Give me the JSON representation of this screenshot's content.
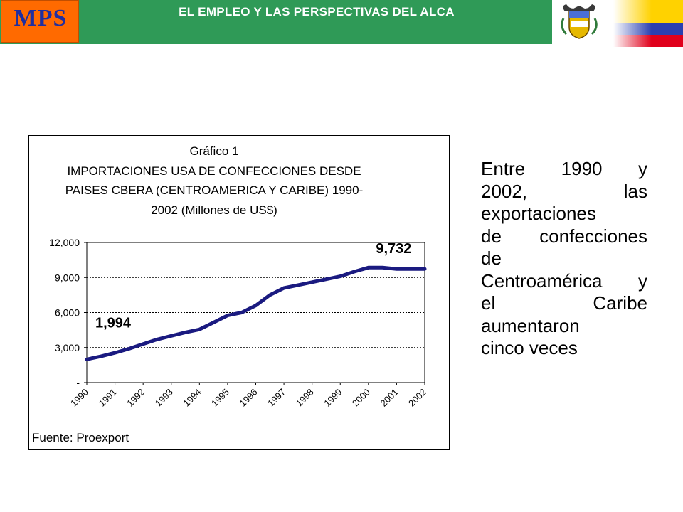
{
  "header": {
    "logo_text": "MPS",
    "title": "EL EMPLEO Y LAS PERSPECTIVAS DEL ALCA",
    "colors": {
      "bar": "#2f9a57",
      "logo_bg": "#ff6a00",
      "logo_text": "#1f2fa0"
    },
    "flag_colors": [
      "#ffd200",
      "#2a3fb0",
      "#e0001b"
    ],
    "emblem_icon": "colombia-coat-of-arms-icon"
  },
  "chart_data": {
    "type": "line",
    "title_lines": [
      "Gráfico 1",
      "IMPORTACIONES USA DE CONFECCIONES DESDE",
      "PAISES CBERA (CENTROAMERICA Y CARIBE) 1990-",
      "2002 (Millones de US$)"
    ],
    "source": "Fuente: Proexport",
    "x": [
      1990,
      1990.5,
      1991,
      1991.5,
      1992,
      1992.5,
      1993,
      1993.5,
      1994,
      1994.5,
      1995,
      1995.5,
      1996,
      1996.5,
      1997,
      1997.5,
      1998,
      1998.5,
      1999,
      1999.5,
      2000,
      2000.5,
      2001,
      2001.5,
      2002
    ],
    "values": [
      1994,
      2250,
      2550,
      2900,
      3300,
      3700,
      4000,
      4300,
      4550,
      5150,
      5750,
      6000,
      6600,
      7500,
      8100,
      8350,
      8600,
      8850,
      9100,
      9500,
      9850,
      9850,
      9732,
      9732,
      9732
    ],
    "x_tick_labels": [
      "1990",
      "1991",
      "1992",
      "1993",
      "1994",
      "1995",
      "1996",
      "1997",
      "1998",
      "1999",
      "2000",
      "2001",
      "2002"
    ],
    "y_tick_labels": [
      "-",
      "3,000",
      "6,000",
      "9,000",
      "12,000"
    ],
    "y_ticks": [
      0,
      3000,
      6000,
      9000,
      12000
    ],
    "ylim": [
      0,
      12000
    ],
    "xlim": [
      1990,
      2002
    ],
    "annotations": [
      {
        "text": "1,994",
        "x": 1990,
        "y": 1994
      },
      {
        "text": "9,732",
        "x": 2001,
        "y": 9732
      }
    ],
    "grid": "dotted horizontal",
    "line_color": "#1a1a80"
  },
  "side_text_lines": [
    "Entre 1990 y",
    "2002, las",
    "exportaciones",
    "de confecciones",
    "de",
    "Centroamérica y",
    "el Caribe",
    "aumentaron",
    "cinco veces"
  ]
}
